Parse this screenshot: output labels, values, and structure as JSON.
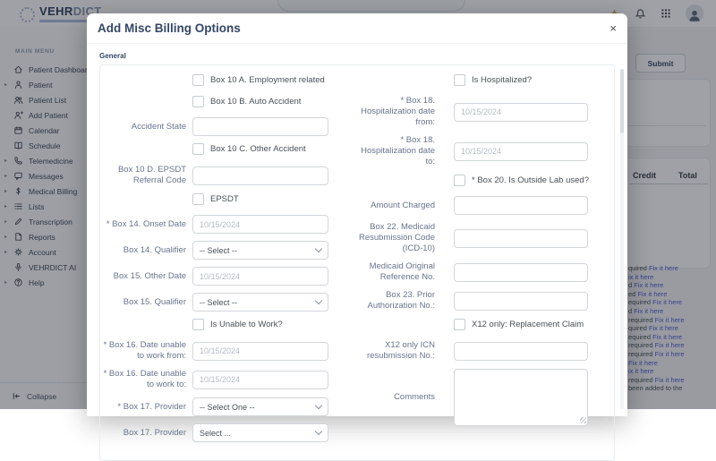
{
  "header": {
    "logo": {
      "primary": "VEHR",
      "secondary": "DICT"
    },
    "icons": {
      "sparkle": "sparkle-icon",
      "bell": "bell-icon",
      "apps": "grid-icon",
      "avatar": "user-avatar"
    }
  },
  "sidebar": {
    "section_label": "MAIN MENU",
    "items": [
      {
        "label": "Patient Dashboard",
        "icon": "home-icon",
        "chevron": false
      },
      {
        "label": "Patient",
        "icon": "person-icon",
        "chevron": true
      },
      {
        "label": "Patient List",
        "icon": "people-icon",
        "chevron": false
      },
      {
        "label": "Add Patient",
        "icon": "person-plus-icon",
        "chevron": false
      },
      {
        "label": "Calendar",
        "icon": "calendar-icon",
        "chevron": false
      },
      {
        "label": "Schedule",
        "icon": "book-icon",
        "chevron": false
      },
      {
        "label": "Telemedicine",
        "icon": "phone-icon",
        "chevron": true
      },
      {
        "label": "Messages",
        "icon": "message-icon",
        "chevron": true
      },
      {
        "label": "Medical Billing",
        "icon": "dollar-icon",
        "chevron": true
      },
      {
        "label": "Lists",
        "icon": "list-icon",
        "chevron": true
      },
      {
        "label": "Transcription",
        "icon": "pen-icon",
        "chevron": true
      },
      {
        "label": "Reports",
        "icon": "report-icon",
        "chevron": true
      },
      {
        "label": "Account",
        "icon": "gear-icon",
        "chevron": true
      },
      {
        "label": "VEHRDICT AI",
        "icon": "mic-icon",
        "chevron": false
      },
      {
        "label": "Help",
        "icon": "help-icon",
        "chevron": true
      }
    ],
    "collapse_label": "Collapse"
  },
  "background": {
    "submit_label": "Submit",
    "table_headers": [
      "Credit",
      "Total"
    ],
    "errors": [
      {
        "pre": "quired ",
        "link": "Fix it here"
      },
      {
        "pre": "",
        "link": "ix it here"
      },
      {
        "pre": "d ",
        "link": "Fix it here"
      },
      {
        "pre": "ed ",
        "link": "Fix it here"
      },
      {
        "pre": "equired ",
        "link": "Fix it here"
      },
      {
        "pre": "d ",
        "link": "Fix it here"
      },
      {
        "pre": "required ",
        "link": "Fix it here"
      },
      {
        "pre": "quired ",
        "link": "Fix it here"
      },
      {
        "pre": "equired ",
        "link": "Fix it here"
      },
      {
        "pre": "required ",
        "link": "Fix it here"
      },
      {
        "pre": "required ",
        "link": "Fix it here"
      },
      {
        "pre": "",
        "link": "Fix it here"
      },
      {
        "pre": "",
        "link": "ix it here"
      },
      {
        "pre": "required ",
        "link": "Fix it here"
      },
      {
        "pre": "been added to the",
        "link": ""
      }
    ]
  },
  "modal": {
    "title": "Add Misc Billing Options",
    "close": "×",
    "tab": "General",
    "columns": {
      "left": [
        {
          "type": "checkbox",
          "label": "Box 10 A. Employment related",
          "checked": false
        },
        {
          "type": "checkbox",
          "label": "Box 10 B. Auto Accident",
          "checked": false
        },
        {
          "type": "text",
          "label": "Accident State",
          "placeholder": "",
          "value": ""
        },
        {
          "type": "checkbox",
          "label": "Box 10 C. Other Accident",
          "checked": false
        },
        {
          "type": "text",
          "label": "Box 10 D. EPSDT Referral Code",
          "placeholder": "",
          "value": ""
        },
        {
          "type": "checkbox",
          "label": "EPSDT",
          "checked": false
        },
        {
          "type": "text",
          "label": "* Box 14. Onset Date",
          "placeholder": "10/15/2024",
          "value": ""
        },
        {
          "type": "select",
          "label": "Box 14. Qualifier",
          "value": "-- Select --"
        },
        {
          "type": "text",
          "label": "Box 15. Other Date",
          "placeholder": "10/15/2024",
          "value": ""
        },
        {
          "type": "select",
          "label": "Box 15. Qualifier",
          "value": "-- Select --"
        },
        {
          "type": "checkbox",
          "label": "Is Unable to Work?",
          "checked": false
        },
        {
          "type": "text",
          "label": "* Box 16. Date unable to work from:",
          "placeholder": "10/15/2024",
          "value": ""
        },
        {
          "type": "text",
          "label": "* Box 16. Date unable to work to:",
          "placeholder": "10/15/2024",
          "value": ""
        },
        {
          "type": "select",
          "label": "* Box 17. Provider",
          "value": "-- Select One --"
        },
        {
          "type": "select",
          "label": "Box 17. Provider",
          "value": "Select ..."
        }
      ],
      "right": [
        {
          "type": "checkbox",
          "label": "Is Hospitalized?",
          "checked": false
        },
        {
          "type": "text",
          "label": "* Box 18. Hospitalization date from:",
          "placeholder": "10/15/2024",
          "value": ""
        },
        {
          "type": "text",
          "label": "* Box 18. Hospitalization date to:",
          "placeholder": "10/15/2024",
          "value": ""
        },
        {
          "type": "checkbox",
          "label": "* Box 20. Is Outside Lab used?",
          "checked": false
        },
        {
          "type": "text",
          "label": "Amount Charged",
          "placeholder": "",
          "value": ""
        },
        {
          "type": "text",
          "label": "Box 22. Medicaid Resubmission Code (ICD-10)",
          "placeholder": "",
          "value": ""
        },
        {
          "type": "text",
          "label": "Medicaid Original Reference No.",
          "placeholder": "",
          "value": ""
        },
        {
          "type": "text",
          "label": "Box 23. Prior Authorization No.:",
          "placeholder": "",
          "value": ""
        },
        {
          "type": "checkbox",
          "label": "X12 only: Replacement Claim",
          "checked": false
        },
        {
          "type": "text",
          "label": "X12 only ICN resubmission No.:",
          "placeholder": "",
          "value": ""
        },
        {
          "type": "textarea",
          "label": "Comments",
          "value": ""
        }
      ]
    }
  }
}
